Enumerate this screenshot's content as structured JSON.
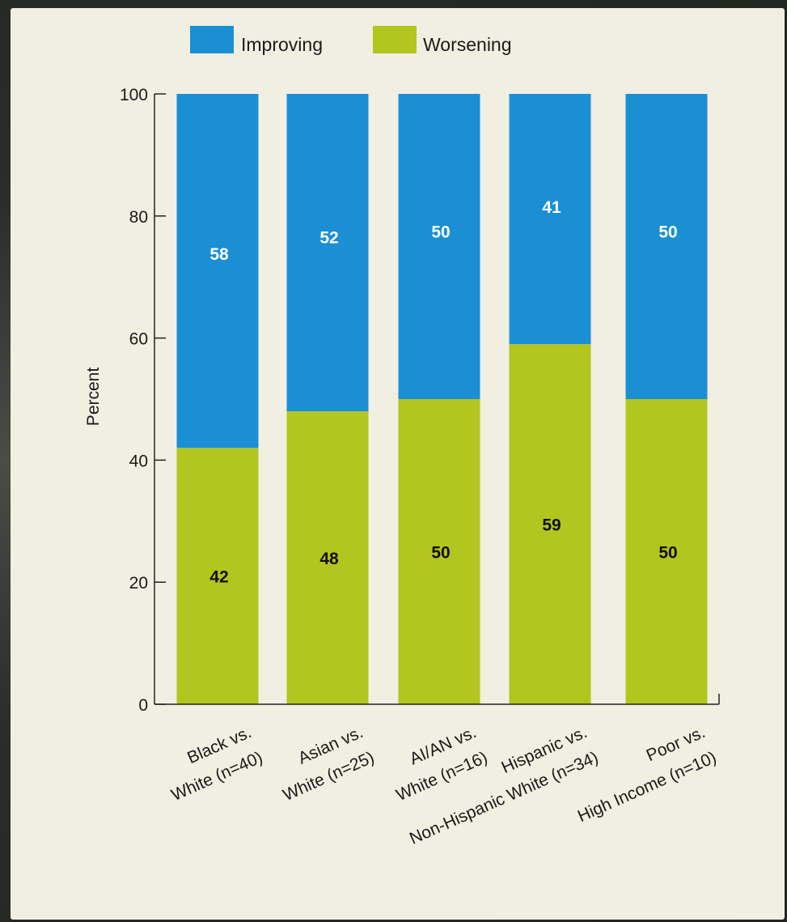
{
  "colors": {
    "improving": "#1a8fd4",
    "worsening": "#b3c51f",
    "panel": "#f1efe2",
    "improving_label": "#ffffff",
    "worsening_label": "#111111"
  },
  "chart_data": {
    "type": "bar",
    "stacked": true,
    "ylabel": "Percent",
    "xlabel": "",
    "ylim": [
      0,
      100
    ],
    "yticks": [
      0,
      20,
      40,
      60,
      80,
      100
    ],
    "legend_position": "top",
    "categories": [
      [
        "Black vs.",
        "White (n=40)"
      ],
      [
        "Asian vs.",
        "White (n=25)"
      ],
      [
        "AI/AN vs.",
        "White (n=16)"
      ],
      [
        "Hispanic vs.",
        "Non-Hispanic White (n=34)"
      ],
      [
        "Poor vs.",
        "High Income (n=10)"
      ]
    ],
    "series": [
      {
        "name": "Worsening",
        "color": "#b3c51f",
        "values": [
          42,
          48,
          50,
          59,
          50
        ]
      },
      {
        "name": "Improving",
        "color": "#1a8fd4",
        "values": [
          58,
          52,
          50,
          41,
          50
        ]
      }
    ],
    "legend": [
      "Improving",
      "Worsening"
    ]
  }
}
